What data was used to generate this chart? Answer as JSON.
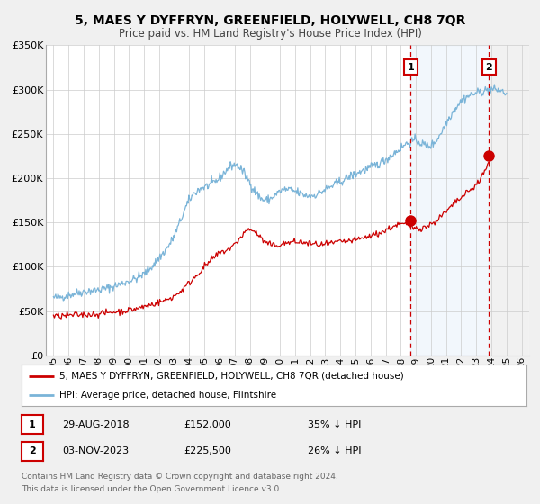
{
  "title": "5, MAES Y DYFFRYN, GREENFIELD, HOLYWELL, CH8 7QR",
  "subtitle": "Price paid vs. HM Land Registry's House Price Index (HPI)",
  "background_color": "#f0f0f0",
  "plot_bg_color": "#ffffff",
  "grid_color": "#cccccc",
  "hpi_color": "#7ab4d8",
  "price_color": "#cc0000",
  "marker1_date_x": 2018.66,
  "marker2_date_x": 2023.84,
  "marker1_price": 152000,
  "marker2_price": 225500,
  "ylim": [
    0,
    350000
  ],
  "xlim": [
    1994.5,
    2026.5
  ],
  "yticks": [
    0,
    50000,
    100000,
    150000,
    200000,
    250000,
    300000,
    350000
  ],
  "ytick_labels": [
    "£0",
    "£50K",
    "£100K",
    "£150K",
    "£200K",
    "£250K",
    "£300K",
    "£350K"
  ],
  "xtick_years": [
    1995,
    1996,
    1997,
    1998,
    1999,
    2000,
    2001,
    2002,
    2003,
    2004,
    2005,
    2006,
    2007,
    2008,
    2009,
    2010,
    2011,
    2012,
    2013,
    2014,
    2015,
    2016,
    2017,
    2018,
    2019,
    2020,
    2021,
    2022,
    2023,
    2024,
    2025,
    2026
  ],
  "legend_property_label": "5, MAES Y DYFFRYN, GREENFIELD, HOLYWELL, CH8 7QR (detached house)",
  "legend_hpi_label": "HPI: Average price, detached house, Flintshire",
  "annotation1_date": "29-AUG-2018",
  "annotation1_price_str": "£152,000",
  "annotation1_pct": "35% ↓ HPI",
  "annotation2_date": "03-NOV-2023",
  "annotation2_price_str": "£225,500",
  "annotation2_pct": "26% ↓ HPI",
  "footer1": "Contains HM Land Registry data © Crown copyright and database right 2024.",
  "footer2": "This data is licensed under the Open Government Licence v3.0."
}
